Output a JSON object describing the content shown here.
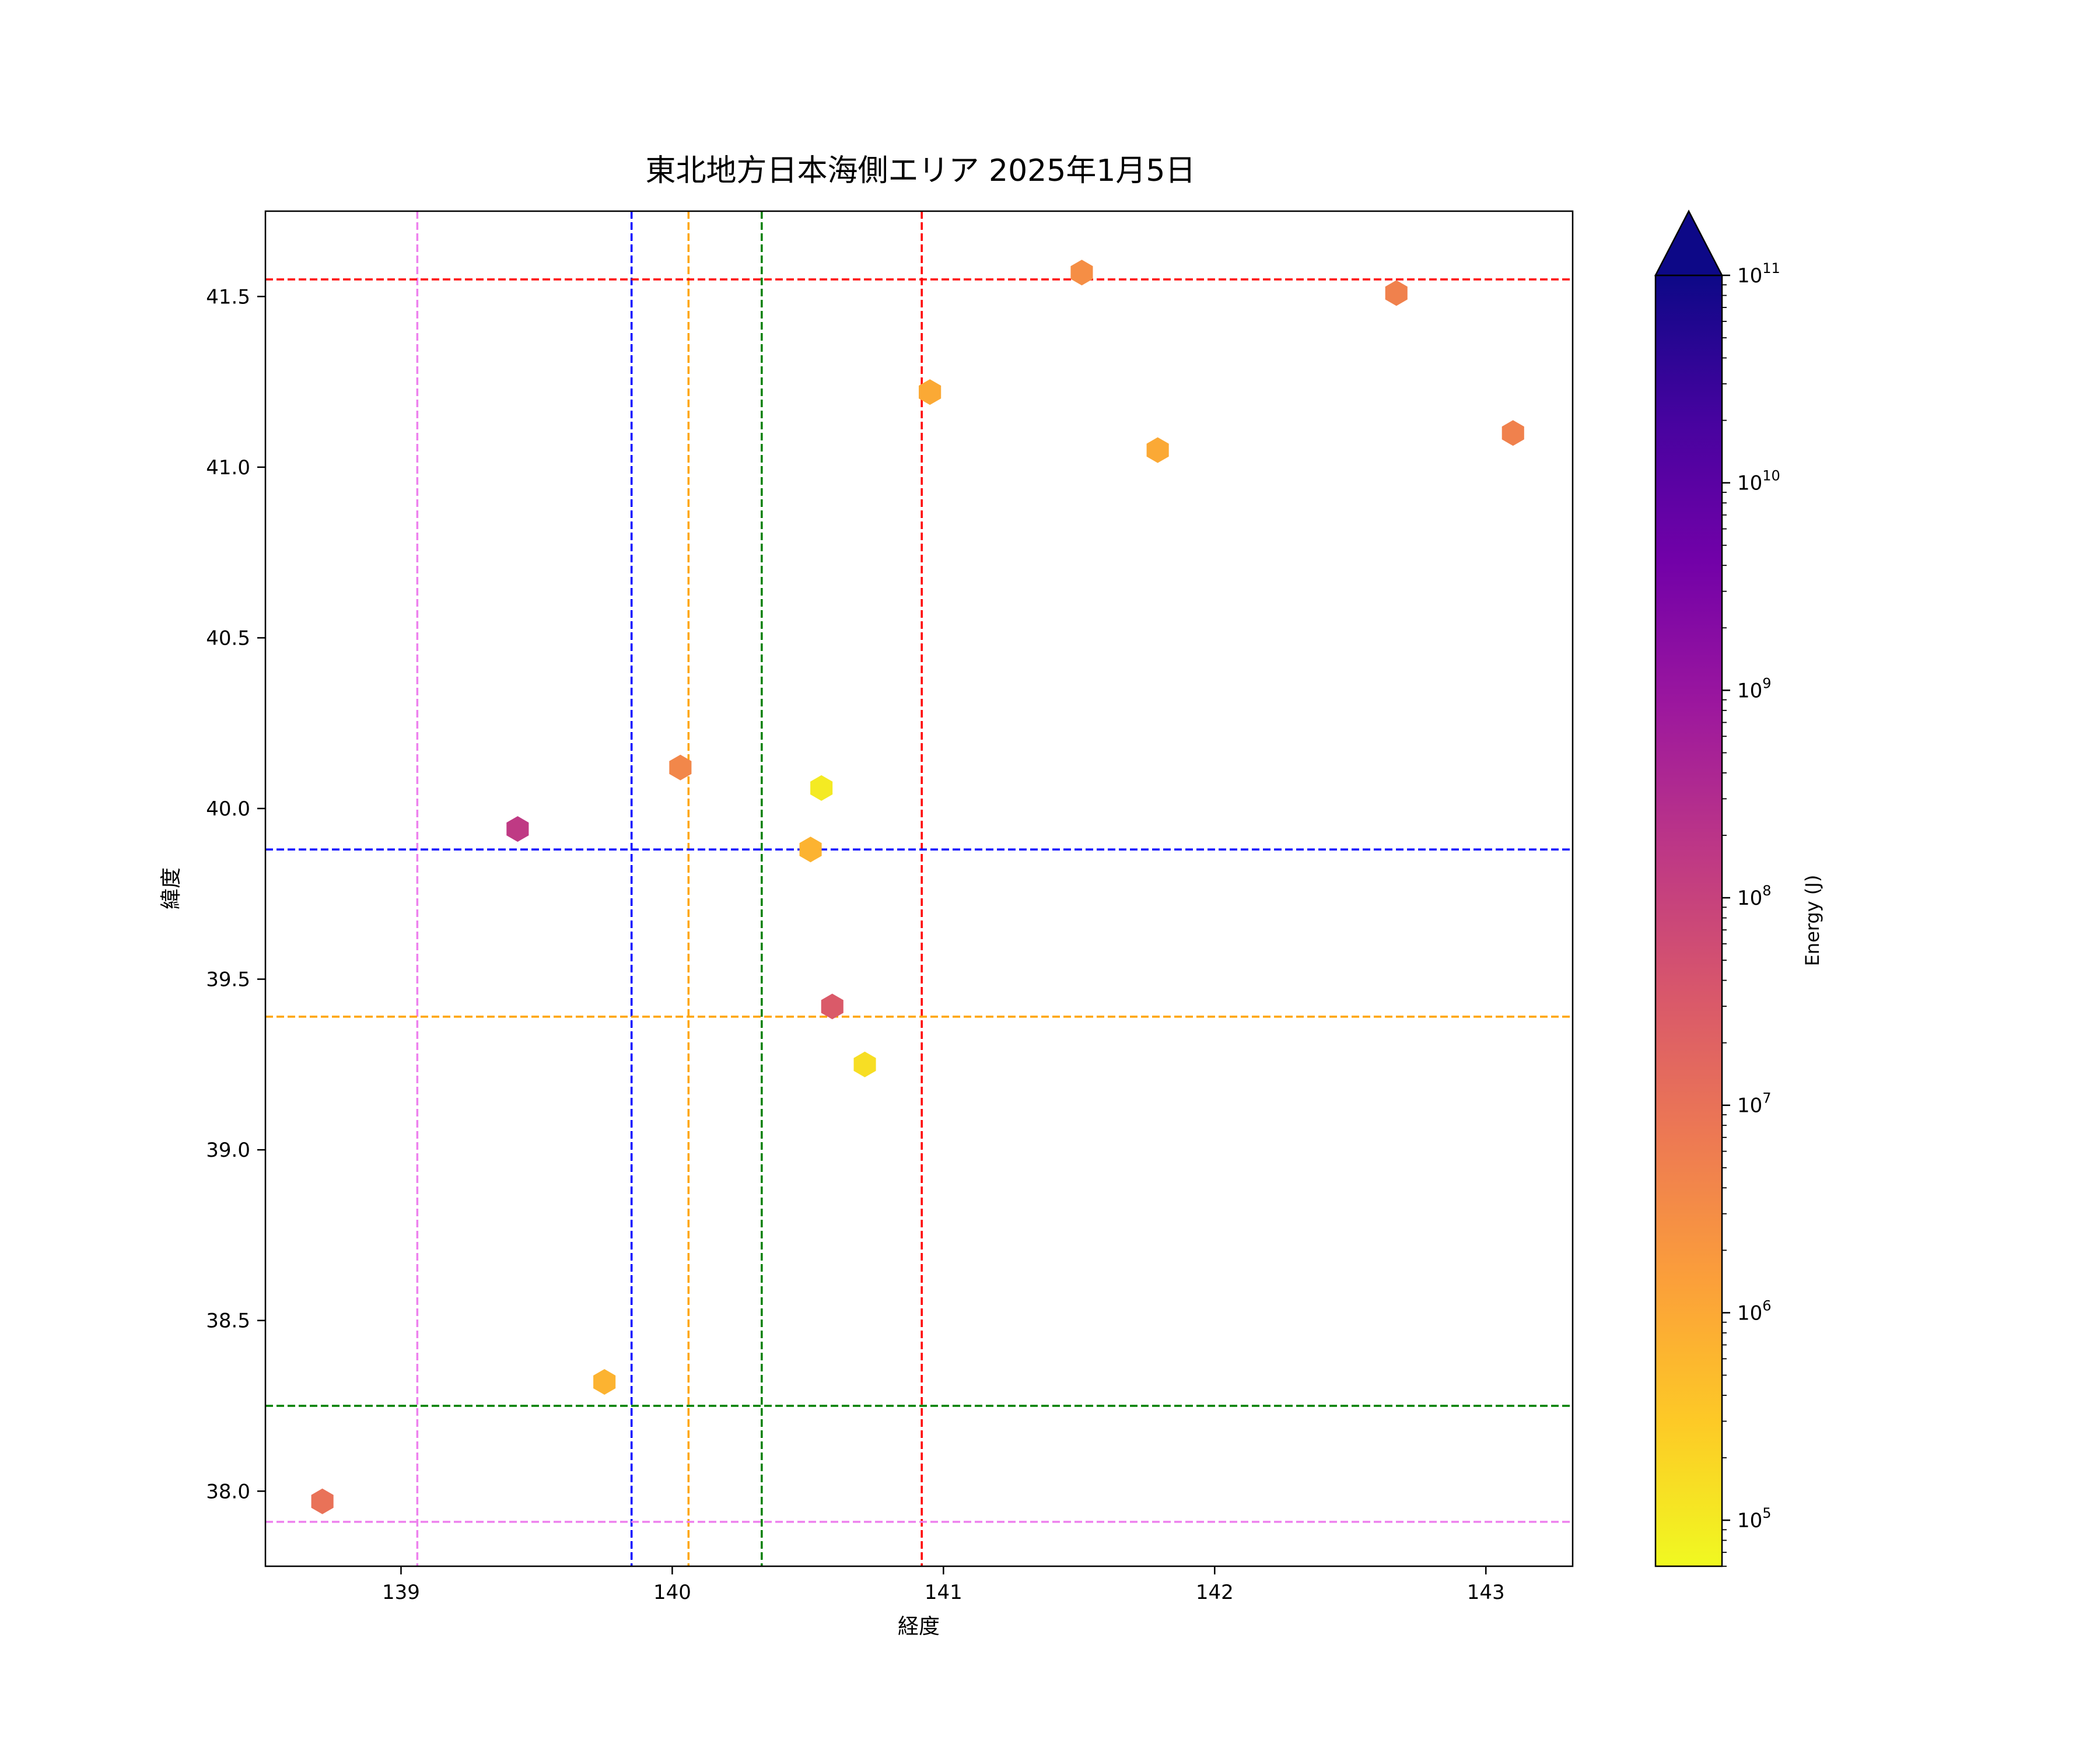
{
  "chart_data": {
    "type": "scatter",
    "title": "東北地方日本海側エリア 2025年1月5日",
    "xlabel": "経度",
    "ylabel": "緯度",
    "xlim": [
      138.5,
      143.32
    ],
    "ylim": [
      37.78,
      41.75
    ],
    "xticks": [
      {
        "v": 139,
        "label": "139"
      },
      {
        "v": 140,
        "label": "140"
      },
      {
        "v": 141,
        "label": "141"
      },
      {
        "v": 142,
        "label": "142"
      },
      {
        "v": 143,
        "label": "143"
      }
    ],
    "yticks": [
      {
        "v": 38.0,
        "label": "38.0"
      },
      {
        "v": 38.5,
        "label": "38.5"
      },
      {
        "v": 39.0,
        "label": "39.0"
      },
      {
        "v": 39.5,
        "label": "39.5"
      },
      {
        "v": 40.0,
        "label": "40.0"
      },
      {
        "v": 40.5,
        "label": "40.5"
      },
      {
        "v": 41.0,
        "label": "41.0"
      },
      {
        "v": 41.5,
        "label": "41.5"
      }
    ],
    "grid": false,
    "marker": "hexagon",
    "points": [
      {
        "x": 138.71,
        "y": 37.97,
        "energy": 10000000
      },
      {
        "x": 139.43,
        "y": 39.94,
        "energy": 150000000
      },
      {
        "x": 139.75,
        "y": 38.32,
        "energy": 700000
      },
      {
        "x": 140.03,
        "y": 40.12,
        "energy": 4000000
      },
      {
        "x": 140.51,
        "y": 39.88,
        "energy": 700000
      },
      {
        "x": 140.55,
        "y": 40.06,
        "energy": 100000
      },
      {
        "x": 140.59,
        "y": 39.42,
        "energy": 30000000
      },
      {
        "x": 140.71,
        "y": 39.25,
        "energy": 150000
      },
      {
        "x": 140.95,
        "y": 41.22,
        "energy": 1000000
      },
      {
        "x": 141.51,
        "y": 41.57,
        "energy": 3000000
      },
      {
        "x": 141.79,
        "y": 41.05,
        "energy": 1000000
      },
      {
        "x": 142.67,
        "y": 41.51,
        "energy": 5000000
      },
      {
        "x": 143.1,
        "y": 41.1,
        "energy": 5000000
      }
    ],
    "reference_lines": [
      {
        "orientation": "vertical",
        "value": 139.06,
        "color": "#ee82ee"
      },
      {
        "orientation": "vertical",
        "value": 139.85,
        "color": "#0000ff"
      },
      {
        "orientation": "vertical",
        "value": 140.06,
        "color": "#ffa500"
      },
      {
        "orientation": "vertical",
        "value": 140.33,
        "color": "#008000"
      },
      {
        "orientation": "vertical",
        "value": 140.92,
        "color": "#ff0000"
      },
      {
        "orientation": "horizontal",
        "value": 41.55,
        "color": "#ff0000"
      },
      {
        "orientation": "horizontal",
        "value": 39.88,
        "color": "#0000ff"
      },
      {
        "orientation": "horizontal",
        "value": 39.39,
        "color": "#ffa500"
      },
      {
        "orientation": "horizontal",
        "value": 38.25,
        "color": "#008000"
      },
      {
        "orientation": "horizontal",
        "value": 37.91,
        "color": "#ee82ee"
      }
    ],
    "colorbar": {
      "label": "Energy (J)",
      "scale": "log",
      "colormap": "plasma_r",
      "range": [
        60000,
        100000000000
      ],
      "extend": "max",
      "ticks": [
        {
          "v": 100000,
          "base": "10",
          "exp": "5"
        },
        {
          "v": 1000000,
          "base": "10",
          "exp": "6"
        },
        {
          "v": 10000000,
          "base": "10",
          "exp": "7"
        },
        {
          "v": 100000000,
          "base": "10",
          "exp": "8"
        },
        {
          "v": 1000000000,
          "base": "10",
          "exp": "9"
        },
        {
          "v": 10000000000,
          "base": "10",
          "exp": "10"
        },
        {
          "v": 100000000000,
          "base": "10",
          "exp": "11"
        }
      ]
    }
  }
}
